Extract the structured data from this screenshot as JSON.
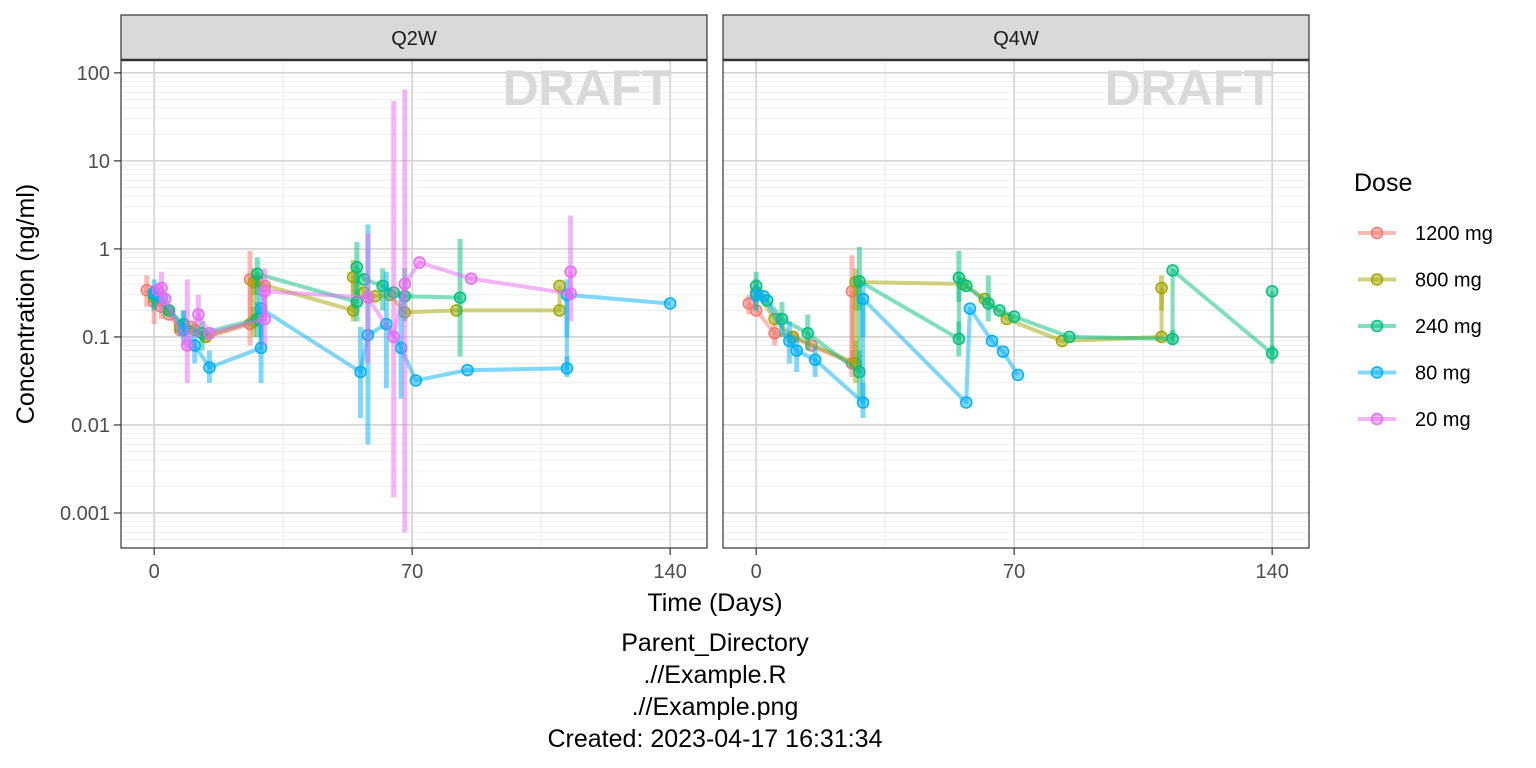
{
  "chart_data": {
    "type": "line",
    "xlabel": "Time (Days)",
    "ylabel": "Concentration (ng/ml)",
    "x_scale": "linear",
    "y_scale": "log10",
    "xlim": [
      -9,
      150
    ],
    "ylim": [
      0.0004,
      140
    ],
    "x_ticks": [
      0,
      70,
      140
    ],
    "x_tick_labels": [
      "0",
      "70",
      "140"
    ],
    "y_ticks": [
      0.001,
      0.01,
      0.1,
      1,
      10,
      100
    ],
    "y_tick_labels": [
      "0.001",
      "0.01",
      "0.1",
      "1",
      "10",
      "100"
    ],
    "grid": true,
    "watermark": "DRAFT",
    "legend": {
      "title": "Dose",
      "placement": "right",
      "entries": [
        "1200 mg",
        "800 mg",
        "240 mg",
        "80 mg",
        "20 mg"
      ]
    },
    "series_colors": {
      "1200 mg": "#F8766D",
      "800 mg": "#A3A500",
      "240 mg": "#00BF7D",
      "80 mg": "#00B0F6",
      "20 mg": "#E76BF3"
    },
    "facets": [
      {
        "label": "Q2W",
        "series": [
          {
            "name": "1200 mg",
            "points": [
              {
                "x": -2,
                "y": 0.34,
                "lo": 0.22,
                "hi": 0.5
              },
              {
                "x": 0,
                "y": 0.25,
                "lo": 0.14,
                "hi": 0.38
              },
              {
                "x": 2,
                "y": 0.22,
                "lo": 0.16,
                "hi": 0.3
              },
              {
                "x": 4,
                "y": 0.18
              },
              {
                "x": 7,
                "y": 0.12
              },
              {
                "x": 10,
                "y": 0.13
              },
              {
                "x": 14,
                "y": 0.1
              },
              {
                "x": 26,
                "y": 0.14,
                "lo": 0.08,
                "hi": 0.2
              },
              {
                "x": 26,
                "y": 0.45,
                "lo": 0.2,
                "hi": 0.95
              },
              {
                "x": 28,
                "y": 0.43
              },
              {
                "x": 30,
                "y": 0.38
              }
            ]
          },
          {
            "name": "800 mg",
            "points": [
              {
                "x": 0,
                "y": 0.28,
                "lo": 0.2,
                "hi": 0.35
              },
              {
                "x": 4,
                "y": 0.2
              },
              {
                "x": 7,
                "y": 0.13
              },
              {
                "x": 11,
                "y": 0.12
              },
              {
                "x": 14,
                "y": 0.1
              },
              {
                "x": 27,
                "y": 0.15,
                "lo": 0.1,
                "hi": 0.22
              },
              {
                "x": 27,
                "y": 0.42,
                "lo": 0.3,
                "hi": 0.6
              },
              {
                "x": 54,
                "y": 0.2,
                "lo": 0.15,
                "hi": 0.27
              },
              {
                "x": 54,
                "y": 0.48,
                "lo": 0.3,
                "hi": 0.75
              },
              {
                "x": 57,
                "y": 0.32
              },
              {
                "x": 60,
                "y": 0.29
              },
              {
                "x": 64,
                "y": 0.3
              },
              {
                "x": 68,
                "y": 0.19
              },
              {
                "x": 82,
                "y": 0.2
              },
              {
                "x": 110,
                "y": 0.2
              },
              {
                "x": 110,
                "y": 0.38
              }
            ]
          },
          {
            "name": "240 mg",
            "points": [
              {
                "x": 0,
                "y": 0.3,
                "lo": 0.22,
                "hi": 0.38
              },
              {
                "x": 4,
                "y": 0.2
              },
              {
                "x": 8,
                "y": 0.14,
                "lo": 0.1,
                "hi": 0.2
              },
              {
                "x": 13,
                "y": 0.11,
                "lo": 0.07,
                "hi": 0.15
              },
              {
                "x": 28,
                "y": 0.16,
                "lo": 0.1,
                "hi": 0.25
              },
              {
                "x": 28,
                "y": 0.52,
                "lo": 0.3,
                "hi": 0.8
              },
              {
                "x": 55,
                "y": 0.25,
                "lo": 0.15,
                "hi": 0.35
              },
              {
                "x": 55,
                "y": 0.62,
                "lo": 0.3,
                "hi": 1.2
              },
              {
                "x": 57,
                "y": 0.45
              },
              {
                "x": 62,
                "y": 0.38,
                "lo": 0.2,
                "hi": 0.6
              },
              {
                "x": 65,
                "y": 0.32
              },
              {
                "x": 68,
                "y": 0.29,
                "lo": 0.15,
                "hi": 0.6
              },
              {
                "x": 83,
                "y": 0.28,
                "lo": 0.06,
                "hi": 1.3
              }
            ]
          },
          {
            "name": "80 mg",
            "points": [
              {
                "x": 0,
                "y": 0.32,
                "lo": 0.2,
                "hi": 0.45
              },
              {
                "x": 2,
                "y": 0.28
              },
              {
                "x": 8,
                "y": 0.12,
                "lo": 0.08,
                "hi": 0.2
              },
              {
                "x": 11,
                "y": 0.08,
                "lo": 0.05,
                "hi": 0.12
              },
              {
                "x": 15,
                "y": 0.045,
                "lo": 0.03,
                "hi": 0.07
              },
              {
                "x": 29,
                "y": 0.075,
                "lo": 0.03,
                "hi": 0.15
              },
              {
                "x": 29,
                "y": 0.21,
                "lo": 0.1,
                "hi": 0.35
              },
              {
                "x": 56,
                "y": 0.04,
                "lo": 0.012,
                "hi": 0.13
              },
              {
                "x": 58,
                "y": 0.105,
                "lo": 0.006,
                "hi": 1.9
              },
              {
                "x": 63,
                "y": 0.14,
                "lo": 0.026,
                "hi": 0.55
              },
              {
                "x": 67,
                "y": 0.075,
                "lo": 0.02,
                "hi": 0.3
              },
              {
                "x": 71,
                "y": 0.032
              },
              {
                "x": 85,
                "y": 0.042
              },
              {
                "x": 112,
                "y": 0.044,
                "lo": 0.035,
                "hi": 0.06
              },
              {
                "x": 112,
                "y": 0.3,
                "lo": 0.1,
                "hi": 0.45
              },
              {
                "x": 140,
                "y": 0.24
              }
            ]
          },
          {
            "name": "20 mg",
            "points": [
              {
                "x": 1,
                "y": 0.34
              },
              {
                "x": 2,
                "y": 0.36,
                "lo": 0.2,
                "hi": 0.55
              },
              {
                "x": 3,
                "y": 0.27
              },
              {
                "x": 9,
                "y": 0.08,
                "lo": 0.03,
                "hi": 0.45
              },
              {
                "x": 12,
                "y": 0.18,
                "lo": 0.1,
                "hi": 0.3
              },
              {
                "x": 15,
                "y": 0.11
              },
              {
                "x": 30,
                "y": 0.16,
                "lo": 0.08,
                "hi": 0.3
              },
              {
                "x": 30,
                "y": 0.33,
                "lo": 0.15,
                "hi": 0.6
              },
              {
                "x": 58,
                "y": 0.28,
                "lo": 0.05,
                "hi": 1.5
              },
              {
                "x": 65,
                "y": 0.1,
                "lo": 0.0015,
                "hi": 48
              },
              {
                "x": 68,
                "y": 0.4,
                "lo": 0.0006,
                "hi": 65
              },
              {
                "x": 72,
                "y": 0.7
              },
              {
                "x": 86,
                "y": 0.46
              },
              {
                "x": 113,
                "y": 0.31,
                "lo": 0.15,
                "hi": 2.4
              },
              {
                "x": 113,
                "y": 0.55
              }
            ]
          }
        ]
      },
      {
        "label": "Q4W",
        "series": [
          {
            "name": "1200 mg",
            "points": [
              {
                "x": -2,
                "y": 0.24,
                "lo": 0.18,
                "hi": 0.3
              },
              {
                "x": 0,
                "y": 0.2
              },
              {
                "x": 5,
                "y": 0.11,
                "lo": 0.08,
                "hi": 0.15
              },
              {
                "x": 10,
                "y": 0.1
              },
              {
                "x": 15,
                "y": 0.08
              },
              {
                "x": 26,
                "y": 0.05,
                "lo": 0.035,
                "hi": 0.07
              },
              {
                "x": 26,
                "y": 0.33,
                "lo": 0.05,
                "hi": 0.85
              }
            ]
          },
          {
            "name": "800 mg",
            "points": [
              {
                "x": 0,
                "y": 0.32,
                "lo": 0.2,
                "hi": 0.45
              },
              {
                "x": 5,
                "y": 0.16
              },
              {
                "x": 10,
                "y": 0.1
              },
              {
                "x": 27,
                "y": 0.05,
                "lo": 0.03,
                "hi": 0.09
              },
              {
                "x": 27,
                "y": 0.42,
                "lo": 0.2,
                "hi": 0.6
              },
              {
                "x": 56,
                "y": 0.4
              },
              {
                "x": 62,
                "y": 0.27
              },
              {
                "x": 68,
                "y": 0.16
              },
              {
                "x": 83,
                "y": 0.09
              },
              {
                "x": 110,
                "y": 0.1
              },
              {
                "x": 110,
                "y": 0.36,
                "lo": 0.2,
                "hi": 0.5
              }
            ]
          },
          {
            "name": "240 mg",
            "points": [
              {
                "x": 0,
                "y": 0.38,
                "lo": 0.25,
                "hi": 0.55
              },
              {
                "x": 3,
                "y": 0.26
              },
              {
                "x": 7,
                "y": 0.16,
                "lo": 0.1,
                "hi": 0.25
              },
              {
                "x": 14,
                "y": 0.11,
                "lo": 0.07,
                "hi": 0.18
              },
              {
                "x": 28,
                "y": 0.04,
                "lo": 0.02,
                "hi": 0.07
              },
              {
                "x": 28,
                "y": 0.43,
                "lo": 0.2,
                "hi": 1.05
              },
              {
                "x": 55,
                "y": 0.095,
                "lo": 0.06,
                "hi": 0.15
              },
              {
                "x": 55,
                "y": 0.47,
                "lo": 0.25,
                "hi": 0.95
              },
              {
                "x": 57,
                "y": 0.38
              },
              {
                "x": 63,
                "y": 0.24,
                "lo": 0.15,
                "hi": 0.5
              },
              {
                "x": 66,
                "y": 0.2
              },
              {
                "x": 70,
                "y": 0.17
              },
              {
                "x": 85,
                "y": 0.1
              },
              {
                "x": 113,
                "y": 0.095,
                "lo": 0.08,
                "hi": 0.12
              },
              {
                "x": 113,
                "y": 0.57
              },
              {
                "x": 140,
                "y": 0.065,
                "lo": 0.05,
                "hi": 0.08
              },
              {
                "x": 140,
                "y": 0.33
              }
            ]
          },
          {
            "name": "80 mg",
            "points": [
              {
                "x": 0,
                "y": 0.3,
                "lo": 0.2,
                "hi": 0.4
              },
              {
                "x": 2,
                "y": 0.29
              },
              {
                "x": 9,
                "y": 0.09,
                "lo": 0.05,
                "hi": 0.15
              },
              {
                "x": 11,
                "y": 0.07,
                "lo": 0.04,
                "hi": 0.1
              },
              {
                "x": 16,
                "y": 0.055,
                "lo": 0.035,
                "hi": 0.08
              },
              {
                "x": 29,
                "y": 0.018,
                "lo": 0.012,
                "hi": 0.03
              },
              {
                "x": 29,
                "y": 0.27,
                "lo": 0.1,
                "hi": 0.4
              },
              {
                "x": 57,
                "y": 0.018
              },
              {
                "x": 58,
                "y": 0.21
              },
              {
                "x": 64,
                "y": 0.09
              },
              {
                "x": 67,
                "y": 0.068
              },
              {
                "x": 71,
                "y": 0.037
              }
            ]
          }
        ]
      }
    ]
  },
  "caption": {
    "lines": [
      "Parent_Directory",
      ".//Example.R",
      ".//Example.png",
      "Created: 2023-04-17 16:31:34"
    ]
  }
}
